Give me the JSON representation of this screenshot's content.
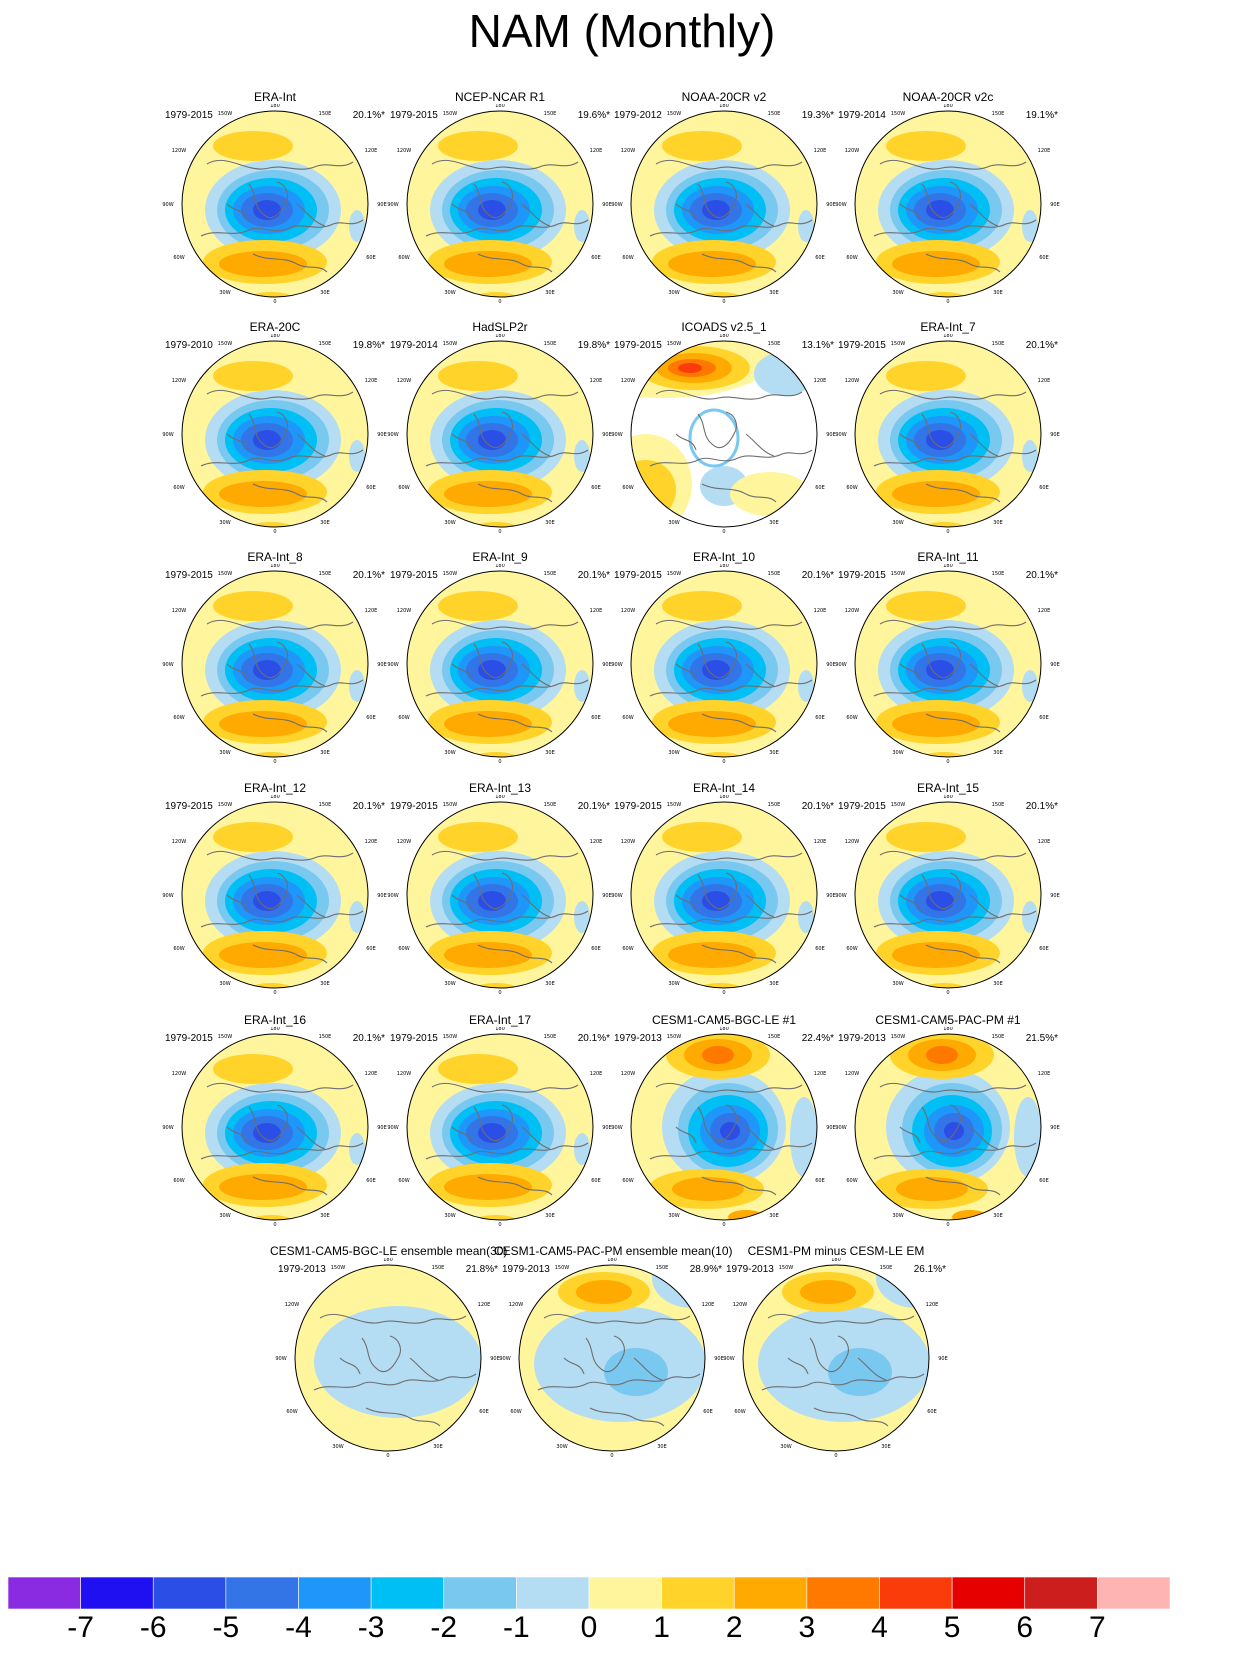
{
  "title": "NAM (Monthly)",
  "longitude_labels": [
    "180",
    "150W",
    "150E",
    "120W",
    "120E",
    "90W",
    "90E",
    "60W",
    "60E",
    "30W",
    "30E",
    "0"
  ],
  "panels": [
    {
      "title": "ERA-Int",
      "period": "1979-2015",
      "variance": "20.1%*",
      "style": "obs"
    },
    {
      "title": "NCEP-NCAR R1",
      "period": "1979-2015",
      "variance": "19.6%*",
      "style": "obs"
    },
    {
      "title": "NOAA-20CR v2",
      "period": "1979-2012",
      "variance": "19.3%*",
      "style": "obs"
    },
    {
      "title": "NOAA-20CR v2c",
      "period": "1979-2014",
      "variance": "19.1%*",
      "style": "obs"
    },
    {
      "title": "ERA-20C",
      "period": "1979-2010",
      "variance": "19.8%*",
      "style": "obs"
    },
    {
      "title": "HadSLP2r",
      "period": "1979-2014",
      "variance": "19.8%*",
      "style": "obs"
    },
    {
      "title": "ICOADS v2.5_1",
      "period": "1979-2015",
      "variance": "13.1%*",
      "style": "icoads"
    },
    {
      "title": "ERA-Int_7",
      "period": "1979-2015",
      "variance": "20.1%*",
      "style": "obs"
    },
    {
      "title": "ERA-Int_8",
      "period": "1979-2015",
      "variance": "20.1%*",
      "style": "obs"
    },
    {
      "title": "ERA-Int_9",
      "period": "1979-2015",
      "variance": "20.1%*",
      "style": "obs"
    },
    {
      "title": "ERA-Int_10",
      "period": "1979-2015",
      "variance": "20.1%*",
      "style": "obs"
    },
    {
      "title": "ERA-Int_11",
      "period": "1979-2015",
      "variance": "20.1%*",
      "style": "obs"
    },
    {
      "title": "ERA-Int_12",
      "period": "1979-2015",
      "variance": "20.1%*",
      "style": "obs"
    },
    {
      "title": "ERA-Int_13",
      "period": "1979-2015",
      "variance": "20.1%*",
      "style": "obs"
    },
    {
      "title": "ERA-Int_14",
      "period": "1979-2015",
      "variance": "20.1%*",
      "style": "obs"
    },
    {
      "title": "ERA-Int_15",
      "period": "1979-2015",
      "variance": "20.1%*",
      "style": "obs"
    },
    {
      "title": "ERA-Int_16",
      "period": "1979-2015",
      "variance": "20.1%*",
      "style": "obs"
    },
    {
      "title": "ERA-Int_17",
      "period": "1979-2015",
      "variance": "20.1%*",
      "style": "obs"
    },
    {
      "title": "CESM1-CAM5-BGC-LE #1",
      "period": "1979-2013",
      "variance": "22.4%*",
      "style": "model"
    },
    {
      "title": "CESM1-CAM5-PAC-PM #1",
      "period": "1979-2013",
      "variance": "21.5%*",
      "style": "model"
    },
    {
      "title": "CESM1-CAM5-BGC-LE ensemble mean(30)",
      "period": "1979-2013",
      "variance": "21.8%*",
      "style": "em_le"
    },
    {
      "title": "CESM1-CAM5-PAC-PM ensemble mean(10)",
      "period": "1979-2013",
      "variance": "28.9%*",
      "style": "em_pm"
    },
    {
      "title": "CESM1-PM minus CESM-LE EM",
      "period": "1979-2013",
      "variance": "26.1%*",
      "style": "em_pm"
    }
  ],
  "colorbar": {
    "colors": [
      "#8a2be2",
      "#1e10f0",
      "#2b4fe6",
      "#3375e6",
      "#1e96fa",
      "#00bff5",
      "#78c8f0",
      "#b4dcf2",
      "#fff59d",
      "#ffd32a",
      "#ffaa00",
      "#ff7800",
      "#fa3c0a",
      "#e60000",
      "#cd1e1e",
      "#ffb4b4"
    ],
    "tick_labels": [
      "-7",
      "-6",
      "-5",
      "-4",
      "-3",
      "-2",
      "-1",
      "0",
      "1",
      "2",
      "3",
      "4",
      "5",
      "6",
      "7"
    ]
  }
}
